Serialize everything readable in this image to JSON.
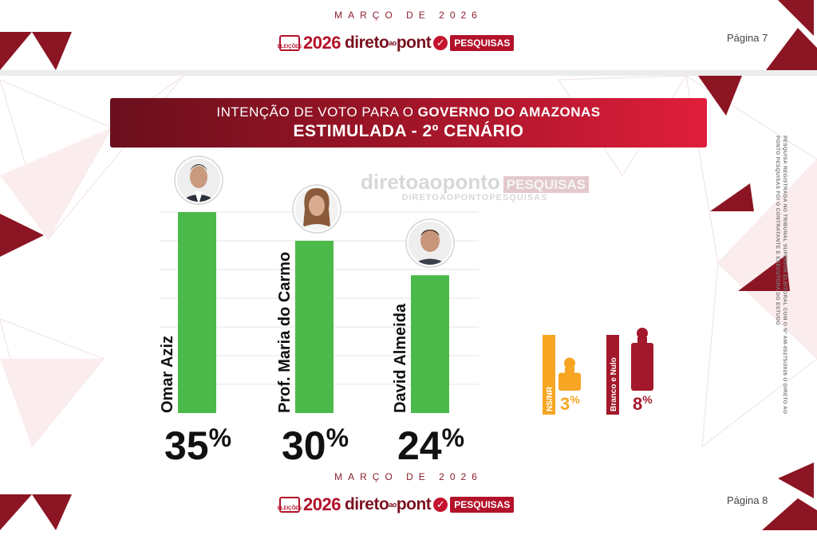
{
  "header": {
    "month": "MARÇO DE 2026",
    "page": "Página 7"
  },
  "footer": {
    "month": "MARÇO DE 2026",
    "page": "Página 8"
  },
  "logo": {
    "box_text": "ELEIÇÕES",
    "year": "2026",
    "brand_a": "direto",
    "brand_small": "ao",
    "brand_b": "pont",
    "tag": "PESQUISAS"
  },
  "banner": {
    "line1_prefix": "INTENÇÃO DE VOTO PARA O ",
    "line1_bold": "GOVERNO DO AMAZONAS",
    "line2": "ESTIMULADA - 2º CENÁRIO"
  },
  "watermark": {
    "brand": "diretoaoponto",
    "tag": "PESQUISAS",
    "sub": "DIRETOAOPONTOPESQUISAS"
  },
  "side_note": "PESQUISA REGISTRADA NO TRIBUNAL SUPERIOR ELEITORAL COM O Nº AM-05275/2026 O DIRETO AO PONTO PESQUISAS FOI O CONTRATANTE E EXECUTORA DO ESTUDO",
  "colors": {
    "candidate_bar": "#4cba4a",
    "ns_nr": "#f6a623",
    "branco_nulo": "#a3182a",
    "accent": "#b3122a"
  },
  "chart_data": {
    "type": "bar",
    "title": "INTENÇÃO DE VOTO PARA O GOVERNO DO AMAZONAS",
    "subtitle": "ESTIMULADA - 2º CENÁRIO",
    "unit": "%",
    "ylim": [
      0,
      40
    ],
    "grid": true,
    "candidates": [
      {
        "name": "Omar Aziz",
        "value": 35,
        "label": "35%"
      },
      {
        "name": "Prof. Maria do Carmo",
        "value": 30,
        "label": "30%"
      },
      {
        "name": "David Almeida",
        "value": 24,
        "label": "24%"
      }
    ],
    "others": [
      {
        "name": "NS/NR",
        "value": 3,
        "label": "3%"
      },
      {
        "name": "Branco e Nulo",
        "value": 8,
        "label": "8%"
      }
    ]
  }
}
